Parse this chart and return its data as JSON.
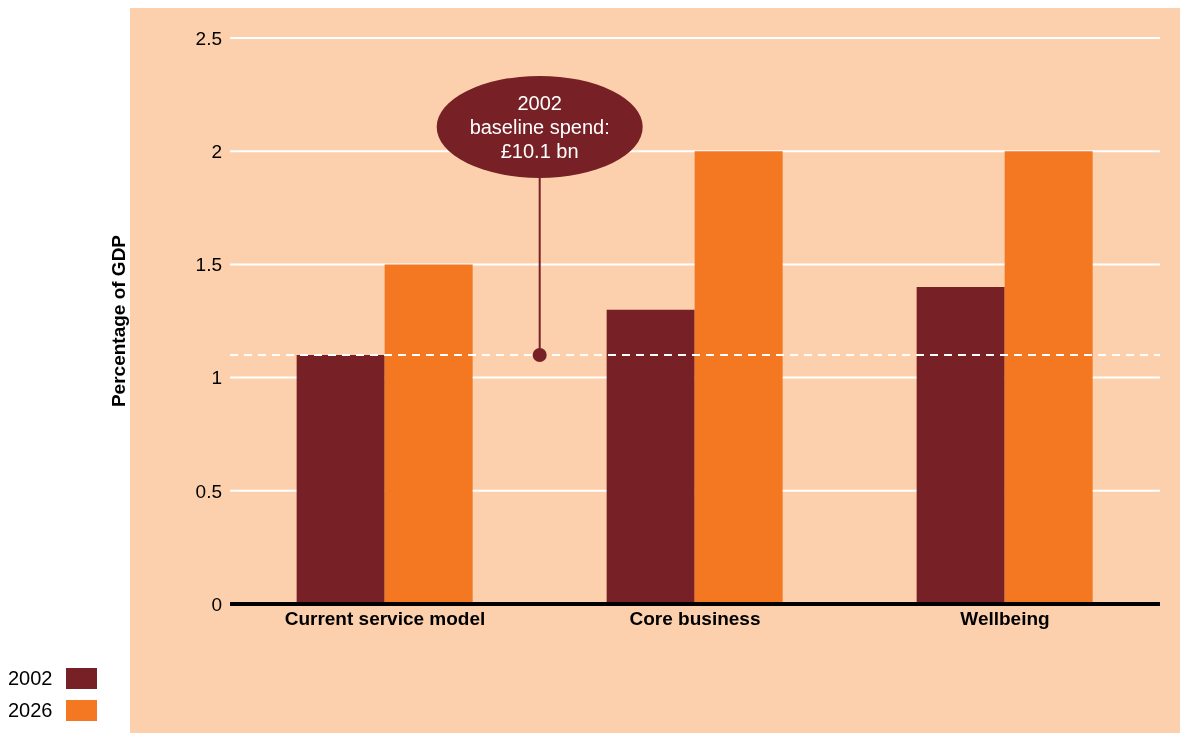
{
  "chart_data": {
    "type": "bar",
    "ylabel": "Percentage of GDP",
    "categories": [
      "Current service model",
      "Core business",
      "Wellbeing"
    ],
    "series": [
      {
        "name": "2002",
        "color": "#772126",
        "values": [
          1.1,
          1.3,
          1.4
        ]
      },
      {
        "name": "2026",
        "color": "#f47721",
        "values": [
          1.5,
          2,
          2
        ]
      }
    ],
    "ylim": [
      0,
      2.5
    ],
    "yticks": [
      0,
      0.5,
      1,
      1.5,
      2,
      2.5
    ],
    "grid": "y",
    "legend": "bottom left",
    "ref_lines": [
      {
        "axis": "y",
        "value": 1.1,
        "color": "#ffffff",
        "line_style": "dashed"
      }
    ],
    "annotations": [
      {
        "text": "2002\nbaseline spend:\n£10.1 bn",
        "y": 1.1
      }
    ]
  }
}
